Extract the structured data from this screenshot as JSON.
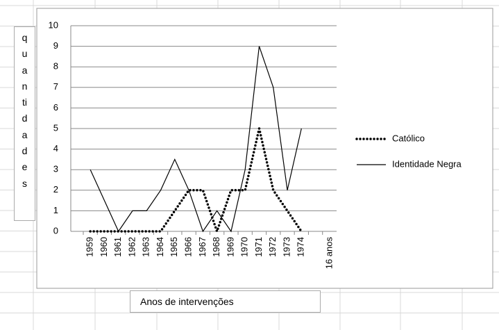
{
  "chart_data": {
    "type": "line",
    "y_axis_title": "quantidades",
    "x_axis_title": "Anos de intervenções",
    "categories": [
      "1959",
      "1960",
      "1961",
      "1962",
      "1963",
      "1964",
      "1965",
      "1966",
      "1967",
      "1968",
      "1969",
      "1970",
      "1971",
      "1972",
      "1973",
      "1974",
      null,
      "16 anos"
    ],
    "series": [
      {
        "name": "Católico",
        "color": "#000000",
        "dash": "dotted",
        "values": [
          0,
          0,
          0,
          0,
          0,
          0,
          1,
          2,
          2,
          0,
          2,
          2,
          5,
          2,
          1,
          0,
          null,
          null
        ]
      },
      {
        "name": "Identidade Negra",
        "color": "#000000",
        "dash": "solid",
        "values": [
          3,
          1.5,
          0,
          1,
          1,
          2,
          3.5,
          2,
          0,
          1,
          0,
          3,
          9,
          7,
          2,
          5,
          null,
          null
        ]
      }
    ],
    "ylim": [
      0,
      10
    ],
    "yticks": [
      0,
      1,
      2,
      3,
      4,
      5,
      6,
      7,
      8,
      9,
      10
    ],
    "grid": true,
    "legend": "right"
  }
}
